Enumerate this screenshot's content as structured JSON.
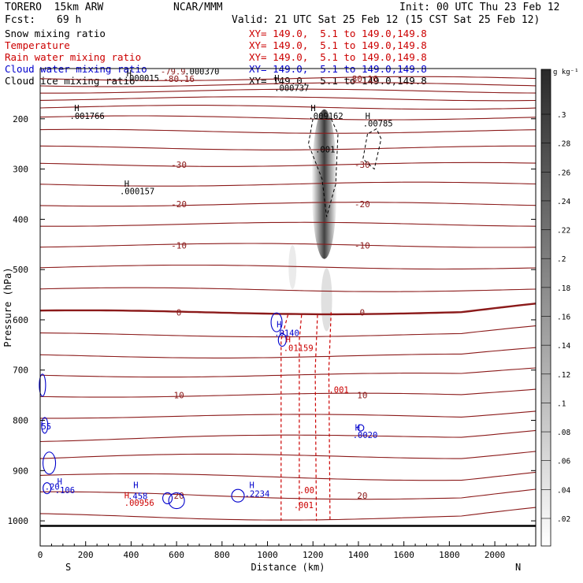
{
  "header": {
    "model": "TORERO  15km ARW",
    "center": "NCAR/MMM",
    "init": "Init: 00 UTC Thu 23 Feb 12",
    "fcst_label": "Fcst:",
    "fcst_value": "69 h",
    "valid": "Valid: 21 UTC Sat 25 Feb 12 (15 CST Sat 25 Feb 12)"
  },
  "fields": [
    {
      "name": "Snow mixing ratio",
      "color": "#000000",
      "xy": "XY= 149.0,  5.1 to 149.0,149.8",
      "xy_color": "#cc0000"
    },
    {
      "name": "Temperature",
      "color": "#cc0000",
      "xy": "XY= 149.0,  5.1 to 149.0,149.8",
      "xy_color": "#cc0000"
    },
    {
      "name": "Rain water mixing ratio",
      "color": "#cc0000",
      "xy": "XY= 149.0,  5.1 to 149.0,149.8",
      "xy_color": "#cc0000"
    },
    {
      "name": "Cloud water mixing ratio",
      "color": "#0000cc",
      "xy": "XY= 149.0,  5.1 to 149.0,149.8",
      "xy_color": "#0000cc"
    },
    {
      "name": "Cloud ice mixing ratio",
      "color": "#000000",
      "xy": "XY= 149.0,  5.1 to 149.0,149.8",
      "xy_color": "#000000"
    }
  ],
  "chart_data": {
    "type": "contour",
    "xlabel": "Distance (km)",
    "ylabel": "Pressure (hPa)",
    "xlim": [
      0,
      2180
    ],
    "ylim": [
      1050,
      100
    ],
    "x_ticks": [
      0,
      200,
      400,
      600,
      800,
      1000,
      1200,
      1400,
      1600,
      1800,
      2000
    ],
    "y_ticks": [
      200,
      300,
      400,
      500,
      600,
      700,
      800,
      900,
      1000
    ],
    "x_end_labels": {
      "left": "S",
      "right": "N"
    },
    "colorbar": {
      "units": "g kg⁻¹",
      "ticks": [
        ".3",
        ".28",
        ".26",
        ".24",
        ".22",
        ".2",
        ".18",
        ".16",
        ".14",
        ".12",
        ".1",
        ".08",
        ".06",
        ".04",
        ".02"
      ]
    },
    "temperature_levels": [
      {
        "p": 120,
        "label": "-80.16"
      },
      {
        "p": 132,
        "label": ""
      },
      {
        "p": 145,
        "label": ""
      },
      {
        "p": 160,
        "label": ""
      },
      {
        "p": 177,
        "label": ""
      },
      {
        "p": 198,
        "label": ""
      },
      {
        "p": 225,
        "label": ""
      },
      {
        "p": 258,
        "label": ""
      },
      {
        "p": 291,
        "label": "-30"
      },
      {
        "p": 330,
        "label": ""
      },
      {
        "p": 370,
        "label": "-20"
      },
      {
        "p": 410,
        "label": ""
      },
      {
        "p": 452,
        "label": "-10"
      },
      {
        "p": 495,
        "label": ""
      },
      {
        "p": 540,
        "label": ""
      },
      {
        "p": 585,
        "label": "0"
      },
      {
        "p": 630,
        "label": ""
      },
      {
        "p": 672,
        "label": ""
      },
      {
        "p": 710,
        "label": ""
      },
      {
        "p": 750,
        "label": "10"
      },
      {
        "p": 792,
        "label": ""
      },
      {
        "p": 835,
        "label": ""
      },
      {
        "p": 875,
        "label": ""
      },
      {
        "p": 915,
        "label": ""
      },
      {
        "p": 950,
        "label": "20"
      },
      {
        "p": 990,
        "label": ""
      }
    ],
    "annotations": [
      {
        "text": "H",
        "x": 380,
        "p": 116,
        "color": "#000000"
      },
      {
        "text": ".000015",
        "x": 370,
        "p": 125,
        "color": "#000000"
      },
      {
        "text": "-79.9",
        "x": 530,
        "p": 112,
        "color": "#8b1a1a"
      },
      {
        "text": ".000370",
        "x": 635,
        "p": 112,
        "color": "#000000"
      },
      {
        "text": "H",
        "x": 1030,
        "p": 125,
        "color": "#000000"
      },
      {
        "text": ".000737",
        "x": 1030,
        "p": 145,
        "color": "#000000"
      },
      {
        "text": "H",
        "x": 150,
        "p": 185,
        "color": "#000000"
      },
      {
        "text": ".001766",
        "x": 130,
        "p": 200,
        "color": "#000000"
      },
      {
        "text": "H",
        "x": 1190,
        "p": 185,
        "color": "#000000"
      },
      {
        "text": ".009162",
        "x": 1180,
        "p": 200,
        "color": "#000000"
      },
      {
        "text": "H",
        "x": 1430,
        "p": 200,
        "color": "#000000"
      },
      {
        "text": ".00785",
        "x": 1420,
        "p": 215,
        "color": "#000000"
      },
      {
        "text": ".001",
        "x": 1210,
        "p": 267,
        "color": "#000000"
      },
      {
        "text": "H",
        "x": 370,
        "p": 335,
        "color": "#000000"
      },
      {
        "text": ".000157",
        "x": 350,
        "p": 350,
        "color": "#000000"
      },
      {
        "text": "H",
        "x": 1040,
        "p": 615,
        "color": "#0000cc"
      },
      {
        "text": ".0140",
        "x": 1030,
        "p": 632,
        "color": "#0000cc"
      },
      {
        "text": "H",
        "x": 1080,
        "p": 645,
        "color": "#cc0000"
      },
      {
        "text": ".01159",
        "x": 1070,
        "p": 662,
        "color": "#cc0000"
      },
      {
        "text": ".001",
        "x": 1270,
        "p": 745,
        "color": "#cc0000"
      },
      {
        "text": "H",
        "x": 1385,
        "p": 820,
        "color": "#0000cc"
      },
      {
        "text": ".0020",
        "x": 1375,
        "p": 835,
        "color": "#0000cc"
      },
      {
        "text": "H",
        "x": 410,
        "p": 935,
        "color": "#0000cc"
      },
      {
        "text": "H",
        "x": 370,
        "p": 955,
        "color": "#cc0000"
      },
      {
        "text": ".458",
        "x": 385,
        "p": 957,
        "color": "#0000cc"
      },
      {
        "text": ".00956",
        "x": 370,
        "p": 970,
        "color": "#cc0000"
      },
      {
        "text": "H",
        "x": 920,
        "p": 935,
        "color": "#0000cc"
      },
      {
        "text": ".2234",
        "x": 900,
        "p": 952,
        "color": "#0000cc"
      },
      {
        "text": ".00",
        "x": 1140,
        "p": 945,
        "color": "#cc0000"
      },
      {
        "text": ".001",
        "x": 1115,
        "p": 975,
        "color": "#cc0000"
      },
      {
        "text": "55",
        "x": 5,
        "p": 818,
        "color": "#0000cc"
      },
      {
        "text": ".106",
        "x": 65,
        "p": 945,
        "color": "#0000cc"
      },
      {
        "text": "H",
        "x": 75,
        "p": 928,
        "color": "#0000cc"
      },
      {
        "text": ".20",
        "x": 20,
        "p": 938,
        "color": "#0000cc"
      }
    ]
  }
}
